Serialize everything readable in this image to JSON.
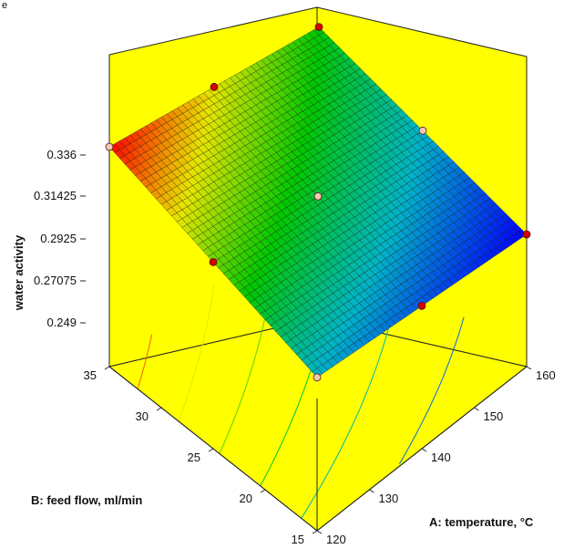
{
  "chart_data": {
    "type": "surface",
    "corner_text": "e",
    "zlabel": "water activity",
    "xlabel": "A: temperature, °C",
    "ylabel": "B: feed flow, ml/min",
    "z_ticks": [
      "0.336",
      "0.31425",
      "0.2925",
      "0.27075",
      "0.249"
    ],
    "x_ticks": [
      "120",
      "130",
      "140",
      "150",
      "160"
    ],
    "y_ticks": [
      "15",
      "20",
      "25",
      "30",
      "35"
    ],
    "xlim": [
      120,
      160
    ],
    "ylim": [
      15,
      35
    ],
    "zlim": [
      0.249,
      0.336
    ],
    "surface_corners": [
      {
        "x": 120,
        "y": 35,
        "z": 0.336
      },
      {
        "x": 160,
        "y": 35,
        "z": 0.292
      },
      {
        "x": 120,
        "y": 15,
        "z": 0.27
      },
      {
        "x": 160,
        "y": 15,
        "z": 0.249
      }
    ],
    "design_points": [
      {
        "x": 120,
        "y": 35,
        "color": "light"
      },
      {
        "x": 140,
        "y": 35,
        "color": "red"
      },
      {
        "x": 160,
        "y": 35,
        "color": "red"
      },
      {
        "x": 160,
        "y": 25,
        "color": "light"
      },
      {
        "x": 160,
        "y": 15,
        "color": "red"
      },
      {
        "x": 140,
        "y": 15,
        "color": "red"
      },
      {
        "x": 120,
        "y": 15,
        "color": "light"
      },
      {
        "x": 120,
        "y": 25,
        "color": "red"
      },
      {
        "x": 140,
        "y": 25,
        "color": "light"
      }
    ],
    "colors": {
      "floor": "#ffff00",
      "walls": "#ffff00",
      "point_red": "#d40000",
      "point_light": "#f0c8b4",
      "colormap": [
        "#0000ff",
        "#00b4c8",
        "#00c800",
        "#e6e600",
        "#ff0000"
      ]
    }
  }
}
